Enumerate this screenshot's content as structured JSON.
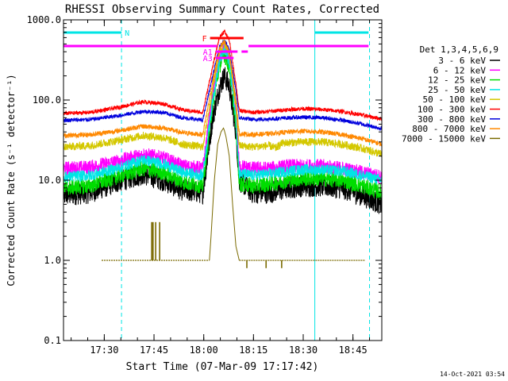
{
  "chart_data": {
    "type": "line",
    "title": "RHESSI Observing Summary Count Rates, Corrected",
    "xlabel": "Start Time (07-Mar-09 17:17:42)",
    "ylabel": "Corrected Count Rate (s⁻¹ detector⁻¹)",
    "yscale": "log",
    "ylim": [
      0.1,
      1000
    ],
    "xlim_minutes_after_start": [
      0,
      96
    ],
    "y_ticks": [
      "0.1",
      "1.0",
      "10.0",
      "100.0",
      "1000.0"
    ],
    "x_ticks": [
      {
        "label": "17:30",
        "t": 12.3
      },
      {
        "label": "17:45",
        "t": 27.3
      },
      {
        "label": "18:00",
        "t": 42.3
      },
      {
        "label": "18:15",
        "t": 57.3
      },
      {
        "label": "18:30",
        "t": 72.3
      },
      {
        "label": "18:45",
        "t": 87.3
      }
    ],
    "legend": {
      "placement": "right",
      "header": "Det 1,3,4,5,6,9",
      "entries": [
        {
          "label": "3 - 6 keV",
          "color": "#000000"
        },
        {
          "label": "6 - 12 keV",
          "color": "#ff00ff"
        },
        {
          "label": "12 - 25 keV",
          "color": "#00dd00"
        },
        {
          "label": "25 - 50 keV",
          "color": "#00e5e5"
        },
        {
          "label": "50 - 100 keV",
          "color": "#d4c800"
        },
        {
          "label": "100 - 300 keV",
          "color": "#ff0000"
        },
        {
          "label": "300 - 800 keV",
          "color": "#0000dd"
        },
        {
          "label": "800 - 7000 keV",
          "color": "#ff8800"
        },
        {
          "label": "7000 - 15000 keV",
          "color": "#7a6a00"
        }
      ]
    },
    "series": [
      {
        "name": "3 - 6 keV",
        "color": "#000000",
        "noise": 0.14,
        "points": [
          [
            0,
            6.5
          ],
          [
            8,
            7
          ],
          [
            16,
            9.5
          ],
          [
            24,
            12
          ],
          [
            30,
            10
          ],
          [
            36,
            7.5
          ],
          [
            42,
            7
          ],
          [
            45,
            60
          ],
          [
            47,
            140
          ],
          [
            48.5,
            200
          ],
          [
            50,
            150
          ],
          [
            52,
            40
          ],
          [
            53,
            10
          ],
          [
            57,
            7
          ],
          [
            62,
            7
          ],
          [
            68,
            8
          ],
          [
            72,
            8.5
          ],
          [
            78,
            8.5
          ],
          [
            84,
            8
          ],
          [
            90,
            6.5
          ],
          [
            96,
            5
          ]
        ]
      },
      {
        "name": "6 - 12 keV",
        "color": "#ff00ff",
        "noise": 0.09,
        "points": [
          [
            0,
            14
          ],
          [
            8,
            14.5
          ],
          [
            16,
            17
          ],
          [
            24,
            21
          ],
          [
            30,
            19
          ],
          [
            36,
            15
          ],
          [
            42,
            14
          ],
          [
            45,
            120
          ],
          [
            47,
            330
          ],
          [
            48.5,
            460
          ],
          [
            50,
            330
          ],
          [
            52,
            70
          ],
          [
            53,
            15
          ],
          [
            57,
            14
          ],
          [
            62,
            14
          ],
          [
            68,
            15
          ],
          [
            72,
            15
          ],
          [
            78,
            15
          ],
          [
            84,
            14
          ],
          [
            90,
            12.5
          ],
          [
            96,
            11
          ]
        ]
      },
      {
        "name": "12 - 25 keV",
        "color": "#00dd00",
        "noise": 0.1,
        "points": [
          [
            0,
            8
          ],
          [
            8,
            8.5
          ],
          [
            16,
            11
          ],
          [
            24,
            14
          ],
          [
            30,
            12.5
          ],
          [
            36,
            9.5
          ],
          [
            42,
            8.5
          ],
          [
            45,
            90
          ],
          [
            47,
            260
          ],
          [
            48.5,
            370
          ],
          [
            50,
            260
          ],
          [
            52,
            50
          ],
          [
            53,
            9
          ],
          [
            57,
            8.5
          ],
          [
            62,
            9
          ],
          [
            68,
            10
          ],
          [
            72,
            10.5
          ],
          [
            78,
            10.5
          ],
          [
            84,
            10
          ],
          [
            90,
            8.5
          ],
          [
            96,
            7
          ]
        ]
      },
      {
        "name": "25 - 50 keV",
        "color": "#00e5e5",
        "noise": 0.07,
        "points": [
          [
            0,
            11
          ],
          [
            8,
            11.5
          ],
          [
            16,
            14
          ],
          [
            24,
            18
          ],
          [
            30,
            16
          ],
          [
            36,
            12.5
          ],
          [
            42,
            11.5
          ],
          [
            45,
            100
          ],
          [
            47,
            300
          ],
          [
            48.5,
            420
          ],
          [
            50,
            300
          ],
          [
            52,
            60
          ],
          [
            53,
            12
          ],
          [
            57,
            11.5
          ],
          [
            62,
            12
          ],
          [
            68,
            13
          ],
          [
            72,
            13.5
          ],
          [
            78,
            13.5
          ],
          [
            84,
            13
          ],
          [
            90,
            11.5
          ],
          [
            96,
            10
          ]
        ]
      },
      {
        "name": "50 - 100 keV",
        "color": "#d4c800",
        "noise": 0.05,
        "points": [
          [
            0,
            26
          ],
          [
            8,
            27
          ],
          [
            16,
            31
          ],
          [
            24,
            36
          ],
          [
            30,
            34
          ],
          [
            36,
            28
          ],
          [
            42,
            26
          ],
          [
            45,
            140
          ],
          [
            47,
            400
          ],
          [
            48.5,
            520
          ],
          [
            50,
            380
          ],
          [
            52,
            80
          ],
          [
            53,
            27
          ],
          [
            57,
            26
          ],
          [
            62,
            27
          ],
          [
            64,
            25
          ],
          [
            66,
            29
          ],
          [
            72,
            30
          ],
          [
            78,
            30
          ],
          [
            84,
            28
          ],
          [
            90,
            25
          ],
          [
            96,
            21
          ]
        ]
      },
      {
        "name": "100 - 300 keV",
        "color": "#ff0000",
        "noise": 0.025,
        "points": [
          [
            0,
            68
          ],
          [
            8,
            70
          ],
          [
            16,
            80
          ],
          [
            24,
            95
          ],
          [
            30,
            90
          ],
          [
            36,
            75
          ],
          [
            42,
            70
          ],
          [
            45,
            260
          ],
          [
            47,
            600
          ],
          [
            48.5,
            720
          ],
          [
            50,
            560
          ],
          [
            52,
            160
          ],
          [
            53,
            74
          ],
          [
            57,
            70
          ],
          [
            62,
            72
          ],
          [
            68,
            76
          ],
          [
            72,
            78
          ],
          [
            78,
            76
          ],
          [
            84,
            72
          ],
          [
            90,
            65
          ],
          [
            96,
            58
          ]
        ]
      },
      {
        "name": "300 - 800 keV",
        "color": "#0000dd",
        "noise": 0.025,
        "points": [
          [
            0,
            56
          ],
          [
            8,
            57
          ],
          [
            16,
            63
          ],
          [
            24,
            72
          ],
          [
            30,
            70
          ],
          [
            36,
            60
          ],
          [
            42,
            56
          ],
          [
            45,
            200
          ],
          [
            47,
            450
          ],
          [
            48.5,
            560
          ],
          [
            50,
            430
          ],
          [
            52,
            130
          ],
          [
            53,
            60
          ],
          [
            57,
            57
          ],
          [
            62,
            58
          ],
          [
            68,
            60
          ],
          [
            72,
            61
          ],
          [
            78,
            60
          ],
          [
            84,
            56
          ],
          [
            90,
            50
          ],
          [
            96,
            44
          ]
        ]
      },
      {
        "name": "800 - 7000 keV",
        "color": "#ff8800",
        "noise": 0.03,
        "points": [
          [
            0,
            36
          ],
          [
            8,
            37
          ],
          [
            16,
            41
          ],
          [
            24,
            47
          ],
          [
            30,
            45
          ],
          [
            36,
            39
          ],
          [
            42,
            37
          ],
          [
            45,
            170
          ],
          [
            47,
            430
          ],
          [
            48.5,
            540
          ],
          [
            50,
            400
          ],
          [
            52,
            100
          ],
          [
            53,
            38
          ],
          [
            57,
            37
          ],
          [
            62,
            38
          ],
          [
            68,
            40
          ],
          [
            72,
            41
          ],
          [
            78,
            40
          ],
          [
            84,
            37
          ],
          [
            90,
            33
          ],
          [
            96,
            28
          ]
        ]
      },
      {
        "name": "7000 - 15000 keV",
        "color": "#7a6a00",
        "noise": 0,
        "points": [
          [
            44,
            1
          ],
          [
            44.5,
            2
          ],
          [
            45.5,
            10
          ],
          [
            46.5,
            28
          ],
          [
            47.5,
            40
          ],
          [
            48.3,
            45
          ],
          [
            49,
            35
          ],
          [
            50,
            20
          ],
          [
            51,
            5
          ],
          [
            52,
            1.5
          ],
          [
            53,
            1
          ]
        ]
      }
    ],
    "spikes_7000_15000_keV": [
      {
        "t": 26.6,
        "top": 3.0
      },
      {
        "t": 27.0,
        "top": 3.0
      },
      {
        "t": 27.8,
        "top": 3.0
      },
      {
        "t": 29.0,
        "top": 3.0
      },
      {
        "t": 55.3,
        "bottom": 0.8
      },
      {
        "t": 61.1,
        "bottom": 0.8
      },
      {
        "t": 65.8,
        "bottom": 0.8
      }
    ],
    "flags": [
      {
        "label": "N",
        "color": "#00e5e5",
        "segments": [
          [
            0,
            17.5
          ],
          [
            75.8,
            92
          ]
        ]
      },
      {
        "label": "",
        "color": "#ff00ff",
        "segments": [
          [
            0,
            46.3
          ],
          [
            55.8,
            92
          ]
        ]
      },
      {
        "label": "F",
        "color": "#ff0000",
        "segments": [
          [
            44.2,
            54.3
          ]
        ]
      },
      {
        "label": "A1",
        "color": "#ff00ff",
        "segments": [
          [
            45.9,
            52.5
          ],
          [
            53.7,
            55.6
          ]
        ]
      },
      {
        "label": "A3",
        "color": "#ff00ff",
        "segments": [
          [
            45.9,
            51.3
          ]
        ]
      }
    ],
    "vertical_lines": [
      {
        "t": 0,
        "style": "solid",
        "color": "#00e5e5"
      },
      {
        "t": 17.5,
        "style": "dashed",
        "color": "#00e5e5"
      },
      {
        "t": 75.8,
        "style": "solid",
        "color": "#00e5e5"
      },
      {
        "t": 92.3,
        "style": "dashed",
        "color": "#00e5e5"
      }
    ],
    "footer_timestamp": "14-Oct-2021 03:54"
  }
}
